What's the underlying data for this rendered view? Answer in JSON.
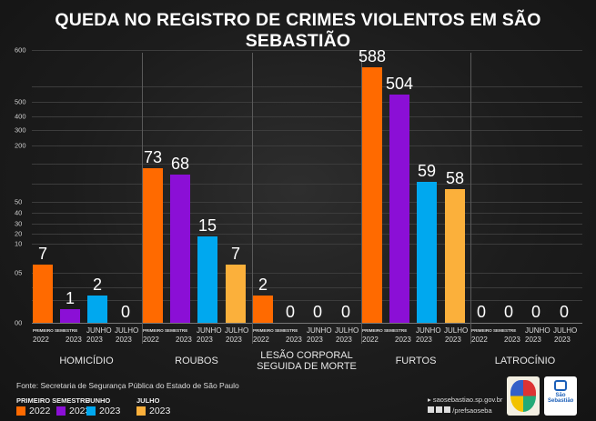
{
  "title": "QUEDA NO REGISTRO DE CRIMES VIOLENTOS EM SÃO SEBASTIÃO",
  "chart_data": {
    "type": "bar",
    "title": "QUEDA NO REGISTRO DE CRIMES VIOLENTOS EM SÃO SEBASTIÃO",
    "categories": [
      "HOMICÍDIO",
      "ROUBOS",
      "LESÃO CORPORAL SEGUIDA DE MORTE",
      "FURTOS",
      "LATROCÍNIO"
    ],
    "category_lines": [
      [
        "HOMICÍDIO"
      ],
      [
        "ROUBOS"
      ],
      [
        "LESÃO CORPORAL",
        "SEGUIDA DE MORTE"
      ],
      [
        "FURTOS"
      ],
      [
        "LATROCÍNIO"
      ]
    ],
    "series": [
      {
        "name": "PRIMEIRO SEMESTRE 2022",
        "color": "#ff6a00",
        "values": [
          7,
          73,
          2,
          588,
          0
        ]
      },
      {
        "name": "PRIMEIRO SEMESTRE 2023",
        "color": "#8b0fd6",
        "values": [
          1,
          68,
          0,
          504,
          0
        ]
      },
      {
        "name": "JUNHO 2023",
        "color": "#00a8ef",
        "values": [
          2,
          15,
          0,
          59,
          0
        ]
      },
      {
        "name": "JULHO 2023",
        "color": "#fbb03b",
        "values": [
          0,
          7,
          0,
          58,
          0
        ]
      }
    ],
    "y_tick_labels": [
      "600",
      "500",
      "400",
      "300",
      "200",
      "50",
      "40",
      "30",
      "20",
      "10",
      "05",
      "00"
    ],
    "ylim": [
      0,
      600
    ],
    "y_scale": "non-linear",
    "grid": true,
    "group_sublabels": {
      "semester": "PRIMEIRO SEMESTRE",
      "june": "JUNHO",
      "july": "JULHO",
      "years": [
        "2022",
        "2023",
        "2023",
        "2023"
      ]
    },
    "legend_position": "bottom-left"
  },
  "source": "Fonte: Secretaria de Segurança Pública do Estado de São Paulo",
  "legend": {
    "headers": [
      "PRIMEIRO SEMESTRE",
      "JUNHO",
      "JULHO"
    ],
    "items": [
      {
        "label": "2022",
        "color": "#ff6a00"
      },
      {
        "label": "2023",
        "color": "#8b0fd6"
      },
      {
        "label": "2023",
        "color": "#00a8ef"
      },
      {
        "label": "2023",
        "color": "#fbb03b"
      }
    ]
  },
  "footer": {
    "website": "saosebastiao.sp.gov.br",
    "social_handle": "/prefsaoseba",
    "social_icons": [
      "facebook-icon",
      "x-icon",
      "instagram-icon"
    ],
    "logos": [
      "city-coat-of-arms-logo",
      "sao-sebastiao-prefeitura-logo"
    ]
  }
}
